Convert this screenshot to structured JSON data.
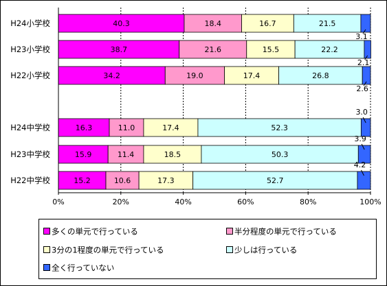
{
  "chart_data": {
    "type": "bar",
    "orientation": "horizontal-stacked-percent",
    "categories": [
      "H24小学校",
      "H23小学校",
      "H22小学校",
      "H24中学校",
      "H23中学校",
      "H22中学校"
    ],
    "series": [
      {
        "name": "多くの単元で行っている",
        "color": "#FF00FF",
        "values": [
          40.3,
          38.7,
          34.2,
          16.3,
          15.9,
          15.2
        ],
        "labels": [
          "40.3",
          "38.7",
          "34.2",
          "16.3",
          "15.9",
          "15.2"
        ]
      },
      {
        "name": "半分程度の単元で行っている",
        "color": "#FF99CC",
        "values": [
          18.4,
          21.6,
          19.0,
          11.0,
          11.4,
          10.6
        ],
        "labels": [
          "18.4",
          "21.6",
          "19.0",
          "11.0",
          "11.4",
          "10.6"
        ]
      },
      {
        "name": "3分の1程度の単元で行っている",
        "color": "#FFFFCC",
        "values": [
          16.7,
          15.5,
          17.4,
          17.4,
          18.5,
          17.3
        ],
        "labels": [
          "16.7",
          "15.5",
          "17.4",
          "17.4",
          "18.5",
          "17.3"
        ]
      },
      {
        "name": "少しは行っている",
        "color": "#CCFFFF",
        "values": [
          21.5,
          22.2,
          26.8,
          52.3,
          50.3,
          52.7
        ],
        "labels": [
          "21.5",
          "22.2",
          "26.8",
          "52.3",
          "50.3",
          "52.7"
        ]
      },
      {
        "name": "全く行っていない",
        "color": "#3366FF",
        "values": [
          3.1,
          2.1,
          2.6,
          3.0,
          3.9,
          4.2
        ],
        "labels": [
          "3.1",
          "2.1",
          "2.6",
          "3.0",
          "3.9",
          "4.2"
        ]
      }
    ],
    "xlim": [
      0,
      100
    ],
    "xticks": [
      "0%",
      "20%",
      "40%",
      "60%",
      "80%",
      "100%"
    ],
    "grid": true,
    "legend_position": "bottom"
  }
}
